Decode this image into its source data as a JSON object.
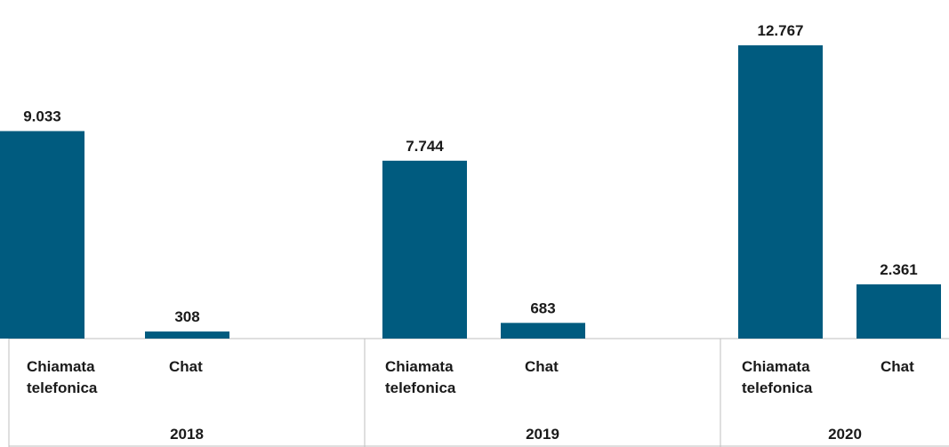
{
  "chart_data": {
    "type": "bar",
    "groups": [
      {
        "year": "2018",
        "bars": [
          {
            "category": [
              "Chiamata",
              "telefonica"
            ],
            "value": 9033,
            "label": "9.033"
          },
          {
            "category": [
              "Chat"
            ],
            "value": 308,
            "label": "308"
          }
        ]
      },
      {
        "year": "2019",
        "bars": [
          {
            "category": [
              "Chiamata",
              "telefonica"
            ],
            "value": 7744,
            "label": "7.744"
          },
          {
            "category": [
              "Chat"
            ],
            "value": 683,
            "label": "683"
          }
        ]
      },
      {
        "year": "2020",
        "bars": [
          {
            "category": [
              "Chiamata",
              "telefonica"
            ],
            "value": 12767,
            "label": "12.767"
          },
          {
            "category": [
              "Chat"
            ],
            "value": 2361,
            "label": "2.361"
          }
        ]
      }
    ],
    "ylim": [
      0,
      12767
    ],
    "grid": false,
    "bar_color": "#005b7f"
  }
}
